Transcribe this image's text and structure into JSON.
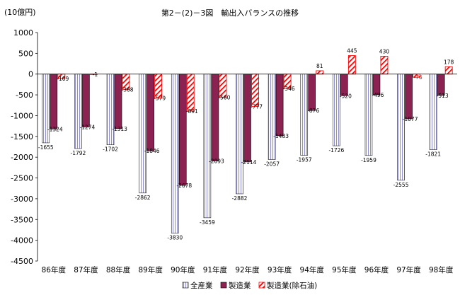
{
  "chart_data": {
    "type": "bar",
    "title": "第2－(2)－3図　輸出入バランスの推移",
    "ylabel": "(10億円)",
    "xlabel": "",
    "ylim": [
      -4500,
      1000
    ],
    "ytick_step": 500,
    "yticks": [
      "1000",
      "500",
      "0",
      "-500",
      "-1000",
      "-1500",
      "-2000",
      "-2500",
      "-3000",
      "-3500",
      "-4000",
      "-4500"
    ],
    "grid": false,
    "legend_position": "bottom",
    "categories": [
      "86年度",
      "87年度",
      "88年度",
      "89年度",
      "90年度",
      "91年度",
      "92年度",
      "93年度",
      "94年度",
      "95年度",
      "96年度",
      "97年度",
      "98年度"
    ],
    "series": [
      {
        "name": "全産業",
        "values": [
          -1655,
          -1792,
          -1702,
          -2862,
          -3830,
          -3459,
          -2882,
          -2057,
          -1957,
          -1726,
          -1959,
          -2555,
          -1821
        ],
        "labels": [
          "-1655",
          "-1792",
          "-1702",
          "-2862",
          "-3830",
          "-3459",
          "-2882",
          "-2057",
          "-1957",
          "-1726",
          "-1959",
          "-2555",
          "-1821"
        ],
        "color": "#d4d4ee",
        "pattern": "vertical-lines"
      },
      {
        "name": "製造業",
        "values": [
          -1324,
          -1274,
          -1313,
          -1846,
          -2678,
          -2093,
          -2114,
          -1483,
          -876,
          -520,
          -496,
          -1077,
          -513
        ],
        "labels": [
          "-1324",
          "-1274",
          "-1313",
          "-1846",
          "-2678",
          "-2093",
          "-2114",
          "-1483",
          "-876",
          "-520",
          "-496",
          "-1077",
          "-513"
        ],
        "color": "#8b2252",
        "pattern": "solid"
      },
      {
        "name": "製造業(除石油)",
        "values": [
          -109,
          -1,
          -368,
          -579,
          -891,
          -560,
          -777,
          -346,
          81,
          445,
          430,
          -76,
          178
        ],
        "labels": [
          "-109",
          "-1",
          "-368",
          "-579",
          "-891",
          "-560",
          "-777",
          "-346",
          "81",
          "445",
          "430",
          "-76",
          "178"
        ],
        "color": "#ff0000",
        "pattern": "diagonal-hatch",
        "highlight_label_index": 11,
        "highlight_color": "#ff0000"
      }
    ]
  }
}
